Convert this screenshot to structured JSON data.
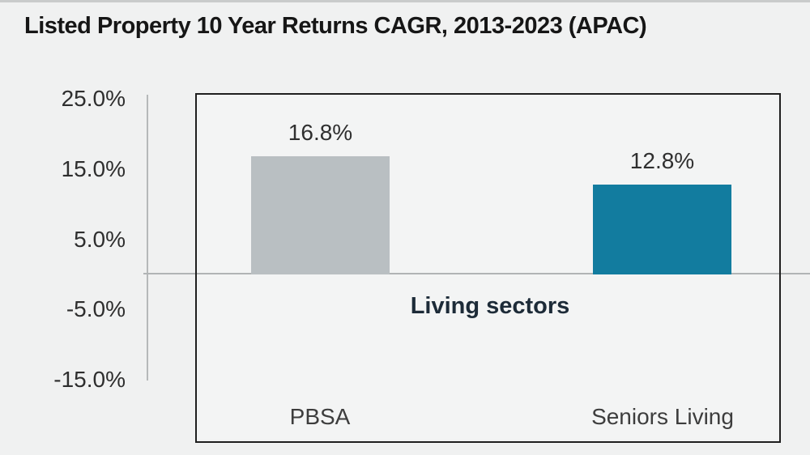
{
  "title": "Listed Property 10 Year Returns CAGR, 2013-2023 (APAC)",
  "chart_data": {
    "type": "bar",
    "title": "Listed Property 10 Year Returns CAGR, 2013-2023 (APAC)",
    "categories": [
      "PBSA",
      "Seniors Living"
    ],
    "values": [
      16.8,
      12.8
    ],
    "value_labels": [
      "16.8%",
      "12.8%"
    ],
    "bar_colors": [
      "#b9bfc2",
      "#127c9f"
    ],
    "annotation": "Living sectors",
    "xlabel": "",
    "ylabel": "",
    "ylim": [
      -15,
      25
    ],
    "yticks": [
      "25.0%",
      "15.0%",
      "5.0%",
      "-5.0%",
      "-15.0%"
    ],
    "ytick_values": [
      25,
      15,
      5,
      -5,
      -15
    ],
    "grid": false,
    "legend": "none",
    "colors": {
      "background": "#f0f1f1",
      "plot_background": "#f3f4f4",
      "box_border": "#1f1f1f",
      "axis_line": "#b6b9ba",
      "zero_line": "#b1b4b5",
      "annotation_text": "#1d2b38",
      "title_text": "#161616"
    }
  }
}
